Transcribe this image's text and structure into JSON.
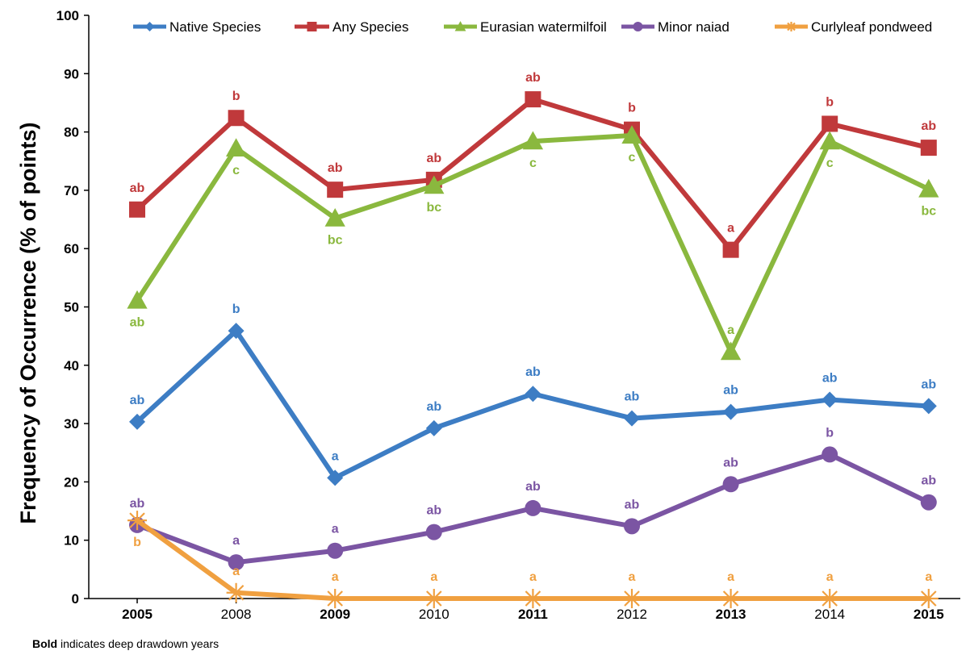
{
  "chart_data": {
    "type": "line",
    "title": "",
    "xlabel": "",
    "ylabel": "Frequency of Occurrence (% of points)",
    "ylim": [
      0,
      100
    ],
    "yticks": [
      0,
      10,
      20,
      30,
      40,
      50,
      60,
      70,
      80,
      90,
      100
    ],
    "grid": false,
    "legend_position": "top",
    "categories": [
      "2005",
      "2008",
      "2009",
      "2010",
      "2011",
      "2012",
      "2013",
      "2014",
      "2015"
    ],
    "bold_categories": [
      "2005",
      "2009",
      "2011",
      "2013",
      "2015"
    ],
    "series": [
      {
        "name": "Native Species",
        "color": "#3d7dc4",
        "marker": "diamond",
        "values": [
          30.3,
          45.9,
          20.7,
          29.2,
          35.1,
          30.9,
          32.0,
          34.1,
          33.0
        ],
        "labels": [
          "ab",
          "b",
          "a",
          "ab",
          "ab",
          "ab",
          "ab",
          "ab",
          "ab"
        ],
        "label_side": [
          "above",
          "above",
          "above",
          "above",
          "above",
          "above",
          "above",
          "above",
          "above"
        ]
      },
      {
        "name": "Any Species",
        "color": "#c0393b",
        "marker": "square",
        "values": [
          66.7,
          82.4,
          70.1,
          71.8,
          85.6,
          80.4,
          59.8,
          81.4,
          77.3
        ],
        "labels": [
          "ab",
          "b",
          "ab",
          "ab",
          "ab",
          "b",
          "a",
          "b",
          "ab"
        ],
        "label_side": [
          "above",
          "above",
          "above",
          "above",
          "above",
          "above",
          "above",
          "above",
          "above"
        ]
      },
      {
        "name": "Eurasian watermilfoil",
        "color": "#8ab83e",
        "marker": "triangle",
        "values": [
          51.1,
          77.2,
          65.2,
          70.8,
          78.4,
          79.4,
          42.3,
          78.4,
          70.2
        ],
        "labels": [
          "ab",
          "c",
          "bc",
          "bc",
          "c",
          "c",
          "a",
          "c",
          "bc"
        ],
        "label_side": [
          "below",
          "below",
          "below",
          "below",
          "below",
          "below",
          "above",
          "below",
          "below"
        ]
      },
      {
        "name": "Minor naiad",
        "color": "#7b55a3",
        "marker": "circle",
        "values": [
          12.6,
          6.2,
          8.2,
          11.4,
          15.5,
          12.4,
          19.6,
          24.7,
          16.5
        ],
        "labels": [
          "ab",
          "a",
          "a",
          "ab",
          "ab",
          "ab",
          "ab",
          "b",
          "ab"
        ],
        "label_side": [
          "above",
          "above",
          "above",
          "above",
          "above",
          "above",
          "above",
          "above",
          "above"
        ]
      },
      {
        "name": "Curlyleaf pondweed",
        "color": "#f0a040",
        "marker": "star",
        "values": [
          13.4,
          1.0,
          0,
          0,
          0,
          0,
          0,
          0,
          0
        ],
        "labels": [
          "b",
          "a",
          "a",
          "a",
          "a",
          "a",
          "a",
          "a",
          "a"
        ],
        "label_side": [
          "below",
          "above",
          "above",
          "above",
          "above",
          "above",
          "above",
          "above",
          "above"
        ]
      }
    ]
  },
  "footnote": {
    "bold_word": "Bold",
    "rest": " indicates deep drawdown years"
  }
}
